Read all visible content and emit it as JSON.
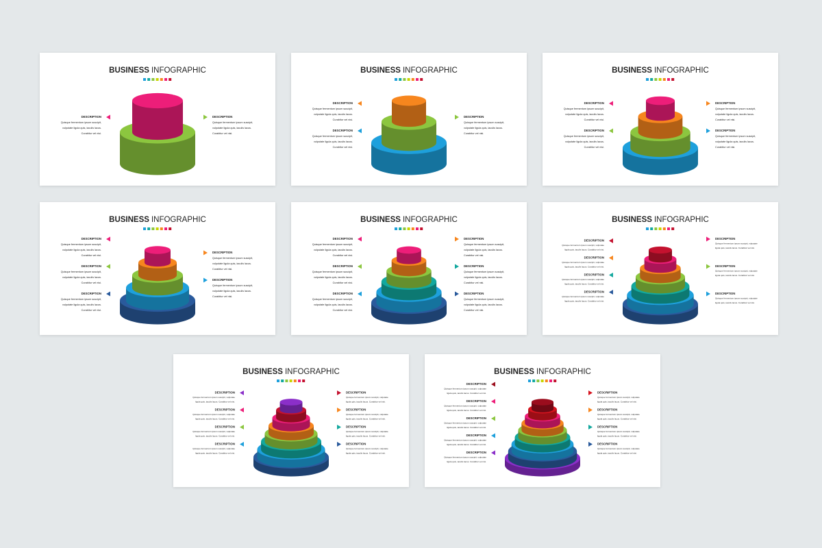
{
  "slides": [
    {
      "title": {
        "bold": "BUSINESS",
        "rest": "INFOGRAPHIC"
      },
      "layers": [
        "#8cc63f",
        "#ed1e79"
      ],
      "left": [
        {
          "heading": "DESCRIPTION",
          "lines": [
            "Quisque fermentum ipsum suscipit,",
            "vulputate ligula quis, iaculis lacus.",
            "Curabitur vel nisi."
          ]
        }
      ],
      "right": [
        {
          "heading": "DESCRIPTION",
          "lines": [
            "Quisque fermentum ipsum suscipit,",
            "vulputate ligula quis, iaculis lacus.",
            "Curabitur vel nisi."
          ]
        }
      ]
    },
    {
      "title": {
        "bold": "BUSINESS",
        "rest": "INFOGRAPHIC"
      },
      "layers": [
        "#1ea0dc",
        "#8cc63f",
        "#f7861e"
      ],
      "left": [
        {
          "heading": "DESCRIPTION",
          "lines": [
            "Quisque fermentum ipsum suscipit,",
            "vulputate ligula quis, iaculis lacus.",
            "Curabitur vel nisi."
          ]
        },
        {
          "heading": "DESCRIPTION",
          "lines": [
            "Quisque fermentum ipsum suscipit,",
            "vulputate ligula quis, iaculis lacus.",
            "Curabitur vel nisi."
          ]
        }
      ],
      "right": [
        {
          "heading": "DESCRIPTION",
          "lines": [
            "Quisque fermentum ipsum suscipit,",
            "vulputate ligula quis, iaculis lacus.",
            "Curabitur vel nisi."
          ]
        }
      ]
    },
    {
      "title": {
        "bold": "BUSINESS",
        "rest": "INFOGRAPHIC"
      },
      "layers": [
        "#1ea0dc",
        "#8cc63f",
        "#f7861e",
        "#ed1e79"
      ],
      "left": [
        {
          "heading": "DESCRIPTION",
          "lines": [
            "Quisque fermentum ipsum suscipit,",
            "vulputate ligula quis, iaculis lacus.",
            "Curabitur vel nisi."
          ]
        },
        {
          "heading": "DESCRIPTION",
          "lines": [
            "Quisque fermentum ipsum suscipit,",
            "vulputate ligula quis, iaculis lacus.",
            "Curabitur vel nisi."
          ]
        }
      ],
      "right": [
        {
          "heading": "DESCRIPTION",
          "lines": [
            "Quisque fermentum ipsum suscipit,",
            "vulputate ligula quis, iaculis lacus.",
            "Curabitur vel nisi."
          ]
        },
        {
          "heading": "DESCRIPTION",
          "lines": [
            "Quisque fermentum ipsum suscipit,",
            "vulputate ligula quis, iaculis lacus.",
            "Curabitur vel nisi."
          ]
        }
      ]
    },
    {
      "title": {
        "bold": "BUSINESS",
        "rest": "INFOGRAPHIC"
      },
      "layers": [
        "#2a5a9c",
        "#1ea0dc",
        "#8cc63f",
        "#f7861e",
        "#ed1e79"
      ],
      "left": [
        {
          "heading": "DESCRIPTION",
          "lines": [
            "Quisque fermentum ipsum suscipit,",
            "vulputate ligula quis, iaculis lacus.",
            "Curabitur vel nisi."
          ]
        },
        {
          "heading": "DESCRIPTION",
          "lines": [
            "Quisque fermentum ipsum suscipit,",
            "vulputate ligula quis, iaculis lacus.",
            "Curabitur vel nisi."
          ]
        },
        {
          "heading": "DESCRIPTION",
          "lines": [
            "Quisque fermentum ipsum suscipit,",
            "vulputate ligula quis, iaculis lacus.",
            "Curabitur vel nisi."
          ]
        }
      ],
      "right": [
        {
          "heading": "DESCRIPTION",
          "lines": [
            "Quisque fermentum ipsum suscipit,",
            "vulputate ligula quis, iaculis lacus.",
            "Curabitur vel nisi."
          ]
        },
        {
          "heading": "DESCRIPTION",
          "lines": [
            "Quisque fermentum ipsum suscipit,",
            "vulputate ligula quis, iaculis lacus.",
            "Curabitur vel nisi."
          ]
        }
      ]
    },
    {
      "title": {
        "bold": "BUSINESS",
        "rest": "INFOGRAPHIC"
      },
      "layers": [
        "#2a5a9c",
        "#1ea0dc",
        "#13a89e",
        "#8cc63f",
        "#f7861e",
        "#ed1e79"
      ],
      "left": [
        {
          "heading": "DESCRIPTION",
          "lines": [
            "Quisque fermentum ipsum suscipit,",
            "vulputate ligula quis, iaculis lacus.",
            "Curabitur vel nisi."
          ]
        },
        {
          "heading": "DESCRIPTION",
          "lines": [
            "Quisque fermentum ipsum suscipit,",
            "vulputate ligula quis, iaculis lacus.",
            "Curabitur vel nisi."
          ]
        },
        {
          "heading": "DESCRIPTION",
          "lines": [
            "Quisque fermentum ipsum suscipit,",
            "vulputate ligula quis, iaculis lacus.",
            "Curabitur vel nisi."
          ]
        }
      ],
      "right": [
        {
          "heading": "DESCRIPTION",
          "lines": [
            "Quisque fermentum ipsum suscipit,",
            "vulputate ligula quis, iaculis lacus.",
            "Curabitur vel nisi."
          ]
        },
        {
          "heading": "DESCRIPTION",
          "lines": [
            "Quisque fermentum ipsum suscipit,",
            "vulputate ligula quis, iaculis lacus.",
            "Curabitur vel nisi."
          ]
        },
        {
          "heading": "DESCRIPTION",
          "lines": [
            "Quisque fermentum ipsum suscipit,",
            "vulputate ligula quis, iaculis lacus.",
            "Curabitur vel nisi."
          ]
        }
      ]
    },
    {
      "title": {
        "bold": "BUSINESS",
        "rest": "INFOGRAPHIC"
      },
      "layers": [
        "#2a5a9c",
        "#1ea0dc",
        "#13a89e",
        "#8cc63f",
        "#f7861e",
        "#ed1e79",
        "#c4122f"
      ],
      "left": [
        {
          "heading": "DESCRIPTION",
          "lines": [
            "Quisque fermentum ipsum suscipit, vulputate",
            "ligula quis, iaculis lacus. Curabitur vel nisi."
          ]
        },
        {
          "heading": "DESCRIPTION",
          "lines": [
            "Quisque fermentum ipsum suscipit, vulputate",
            "ligula quis, iaculis lacus. Curabitur vel nisi."
          ]
        },
        {
          "heading": "DESCRIPTION",
          "lines": [
            "Quisque fermentum ipsum suscipit, vulputate",
            "ligula quis, iaculis lacus. Curabitur vel nisi."
          ]
        },
        {
          "heading": "DESCRIPTION",
          "lines": [
            "Quisque fermentum ipsum suscipit, vulputate",
            "ligula quis, iaculis lacus. Curabitur vel nisi."
          ]
        }
      ],
      "right": [
        {
          "heading": "DESCRIPTION",
          "lines": [
            "Quisque fermentum ipsum suscipit, vulputate",
            "ligula quis, iaculis lacus. Curabitur vel nisi."
          ]
        },
        {
          "heading": "DESCRIPTION",
          "lines": [
            "Quisque fermentum ipsum suscipit, vulputate",
            "ligula quis, iaculis lacus. Curabitur vel nisi."
          ]
        },
        {
          "heading": "DESCRIPTION",
          "lines": [
            "Quisque fermentum ipsum suscipit, vulputate",
            "ligula quis, iaculis lacus. Curabitur vel nisi."
          ]
        }
      ]
    },
    {
      "title": {
        "bold": "BUSINESS",
        "rest": "INFOGRAPHIC"
      },
      "layers": [
        "#2a5a9c",
        "#1ea0dc",
        "#13a89e",
        "#8cc63f",
        "#f7861e",
        "#ed1e79",
        "#c4122f",
        "#8b2fc9"
      ],
      "left": [
        {
          "heading": "DESCRIPTION",
          "lines": [
            "Quisque fermentum ipsum suscipit, vulputate",
            "ligula quis, iaculis lacus. Curabitur vel nisi."
          ]
        },
        {
          "heading": "DESCRIPTION",
          "lines": [
            "Quisque fermentum ipsum suscipit, vulputate",
            "ligula quis, iaculis lacus. Curabitur vel nisi."
          ]
        },
        {
          "heading": "DESCRIPTION",
          "lines": [
            "Quisque fermentum ipsum suscipit, vulputate",
            "ligula quis, iaculis lacus. Curabitur vel nisi."
          ]
        },
        {
          "heading": "DESCRIPTION",
          "lines": [
            "Quisque fermentum ipsum suscipit, vulputate",
            "ligula quis, iaculis lacus. Curabitur vel nisi."
          ]
        }
      ],
      "right": [
        {
          "heading": "DESCRIPTION",
          "lines": [
            "Quisque fermentum ipsum suscipit, vulputate",
            "ligula quis, iaculis lacus. Curabitur vel nisi."
          ]
        },
        {
          "heading": "DESCRIPTION",
          "lines": [
            "Quisque fermentum ipsum suscipit, vulputate",
            "ligula quis, iaculis lacus. Curabitur vel nisi."
          ]
        },
        {
          "heading": "DESCRIPTION",
          "lines": [
            "Quisque fermentum ipsum suscipit, vulputate",
            "ligula quis, iaculis lacus. Curabitur vel nisi."
          ]
        },
        {
          "heading": "DESCRIPTION",
          "lines": [
            "Quisque fermentum ipsum suscipit, vulputate",
            "ligula quis, iaculis lacus. Curabitur vel nisi."
          ]
        }
      ]
    },
    {
      "title": {
        "bold": "BUSINESS",
        "rest": "INFOGRAPHIC"
      },
      "layers": [
        "#8b2fc9",
        "#2a5a9c",
        "#1ea0dc",
        "#13a89e",
        "#8cc63f",
        "#f7861e",
        "#ed1e79",
        "#d7141f",
        "#9b0d1d"
      ],
      "left": [
        {
          "heading": "DESCRIPTION",
          "lines": [
            "Quisque fermentum ipsum suscipit, vulputate",
            "ligula quis, iaculis lacus. Curabitur vel nisi."
          ]
        },
        {
          "heading": "DESCRIPTION",
          "lines": [
            "Quisque fermentum ipsum suscipit, vulputate",
            "ligula quis, iaculis lacus. Curabitur vel nisi."
          ]
        },
        {
          "heading": "DESCRIPTION",
          "lines": [
            "Quisque fermentum ipsum suscipit, vulputate",
            "ligula quis, iaculis lacus. Curabitur vel nisi."
          ]
        },
        {
          "heading": "DESCRIPTION",
          "lines": [
            "Quisque fermentum ipsum suscipit, vulputate",
            "ligula quis, iaculis lacus. Curabitur vel nisi."
          ]
        },
        {
          "heading": "DESCRIPTION",
          "lines": [
            "Quisque fermentum ipsum suscipit, vulputate",
            "ligula quis, iaculis lacus. Curabitur vel nisi."
          ]
        }
      ],
      "right": [
        {
          "heading": "DESCRIPTION",
          "lines": [
            "Quisque fermentum ipsum suscipit, vulputate",
            "ligula quis, iaculis lacus. Curabitur vel nisi."
          ]
        },
        {
          "heading": "DESCRIPTION",
          "lines": [
            "Quisque fermentum ipsum suscipit, vulputate",
            "ligula quis, iaculis lacus. Curabitur vel nisi."
          ]
        },
        {
          "heading": "DESCRIPTION",
          "lines": [
            "Quisque fermentum ipsum suscipit, vulputate",
            "ligula quis, iaculis lacus. Curabitur vel nisi."
          ]
        },
        {
          "heading": "DESCRIPTION",
          "lines": [
            "Quisque fermentum ipsum suscipit, vulputate",
            "ligula quis, iaculis lacus. Curabitur vel nisi."
          ]
        }
      ]
    }
  ]
}
